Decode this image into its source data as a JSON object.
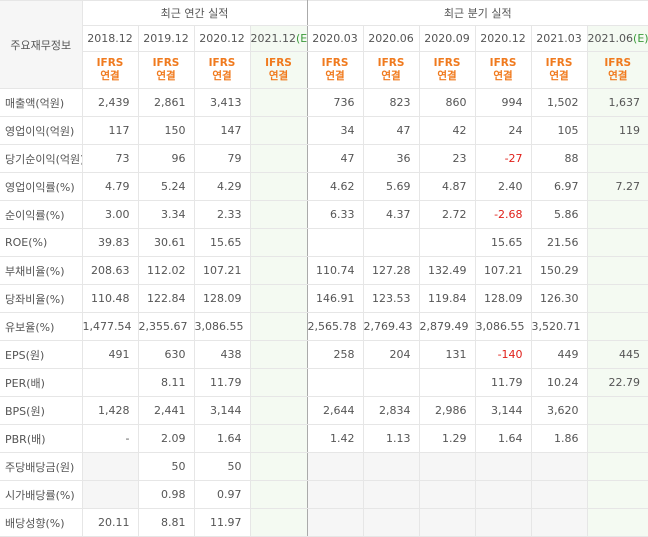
{
  "header": {
    "label": "주요재무정보",
    "groups": [
      {
        "title": "최근 연간 실적",
        "columns": [
          {
            "date": "2018.12",
            "basis": "IFRS 연결"
          },
          {
            "date": "2019.12",
            "basis": "IFRS 연결"
          },
          {
            "date": "2020.12",
            "basis": "IFRS 연결"
          },
          {
            "date": "2021.12",
            "estimate": "(E)",
            "basis": "IFRS 연결"
          }
        ]
      },
      {
        "title": "최근 분기 실적",
        "columns": [
          {
            "date": "2020.03",
            "basis": "IFRS 연결"
          },
          {
            "date": "2020.06",
            "basis": "IFRS 연결"
          },
          {
            "date": "2020.09",
            "basis": "IFRS 연결"
          },
          {
            "date": "2020.12",
            "basis": "IFRS 연결"
          },
          {
            "date": "2021.03",
            "basis": "IFRS 연결"
          },
          {
            "date": "2021.06",
            "estimate": "(E)",
            "basis": "IFRS 연결"
          }
        ]
      }
    ]
  },
  "table": {
    "rows": [
      {
        "label": "매출액(억원)",
        "values": [
          "2,439",
          "2,861",
          "3,413",
          null,
          "736",
          "823",
          "860",
          "994",
          "1,502",
          "1,637"
        ]
      },
      {
        "label": "영업이익(억원)",
        "values": [
          "117",
          "150",
          "147",
          null,
          "34",
          "47",
          "42",
          "24",
          "105",
          "119"
        ]
      },
      {
        "label": "당기순이익(억원)",
        "values": [
          "73",
          "96",
          "79",
          null,
          "47",
          "36",
          "23",
          "-27",
          "88",
          null
        ]
      },
      {
        "label": "영업이익률(%)",
        "values": [
          "4.79",
          "5.24",
          "4.29",
          null,
          "4.62",
          "5.69",
          "4.87",
          "2.40",
          "6.97",
          "7.27"
        ]
      },
      {
        "label": "순이익률(%)",
        "values": [
          "3.00",
          "3.34",
          "2.33",
          null,
          "6.33",
          "4.37",
          "2.72",
          "-2.68",
          "5.86",
          null
        ]
      },
      {
        "label": "ROE(%)",
        "values": [
          "39.83",
          "30.61",
          "15.65",
          null,
          null,
          null,
          null,
          "15.65",
          "21.56",
          null
        ]
      },
      {
        "label": "부채비율(%)",
        "values": [
          "208.63",
          "112.02",
          "107.21",
          null,
          "110.74",
          "127.28",
          "132.49",
          "107.21",
          "150.29",
          null
        ]
      },
      {
        "label": "당좌비율(%)",
        "values": [
          "110.48",
          "122.84",
          "128.09",
          null,
          "146.91",
          "123.53",
          "119.84",
          "128.09",
          "126.30",
          null
        ]
      },
      {
        "label": "유보율(%)",
        "values": [
          "1,477.54",
          "2,355.67",
          "3,086.55",
          null,
          "2,565.78",
          "2,769.43",
          "2,879.49",
          "3,086.55",
          "3,520.71",
          null
        ]
      },
      {
        "label": "EPS(원)",
        "values": [
          "491",
          "630",
          "438",
          null,
          "258",
          "204",
          "131",
          "-140",
          "449",
          "445"
        ]
      },
      {
        "label": "PER(배)",
        "values": [
          null,
          "8.11",
          "11.79",
          null,
          null,
          null,
          null,
          "11.79",
          "10.24",
          "22.79"
        ]
      },
      {
        "label": "BPS(원)",
        "values": [
          "1,428",
          "2,441",
          "3,144",
          null,
          "2,644",
          "2,834",
          "2,986",
          "3,144",
          "3,620",
          null
        ]
      },
      {
        "label": "PBR(배)",
        "values": [
          "-",
          "2.09",
          "1.64",
          null,
          "1.42",
          "1.13",
          "1.29",
          "1.64",
          "1.86",
          null
        ]
      },
      {
        "label": "주당배당금(원)",
        "values": [
          null,
          "50",
          "50",
          null,
          null,
          null,
          null,
          null,
          null,
          null
        ]
      },
      {
        "label": "시가배당률(%)",
        "values": [
          null,
          "0.98",
          "0.97",
          null,
          null,
          null,
          null,
          null,
          null,
          null
        ]
      },
      {
        "label": "배당성향(%)",
        "values": [
          "20.11",
          "8.81",
          "11.97",
          null,
          null,
          null,
          null,
          null,
          null,
          null
        ]
      }
    ]
  }
}
